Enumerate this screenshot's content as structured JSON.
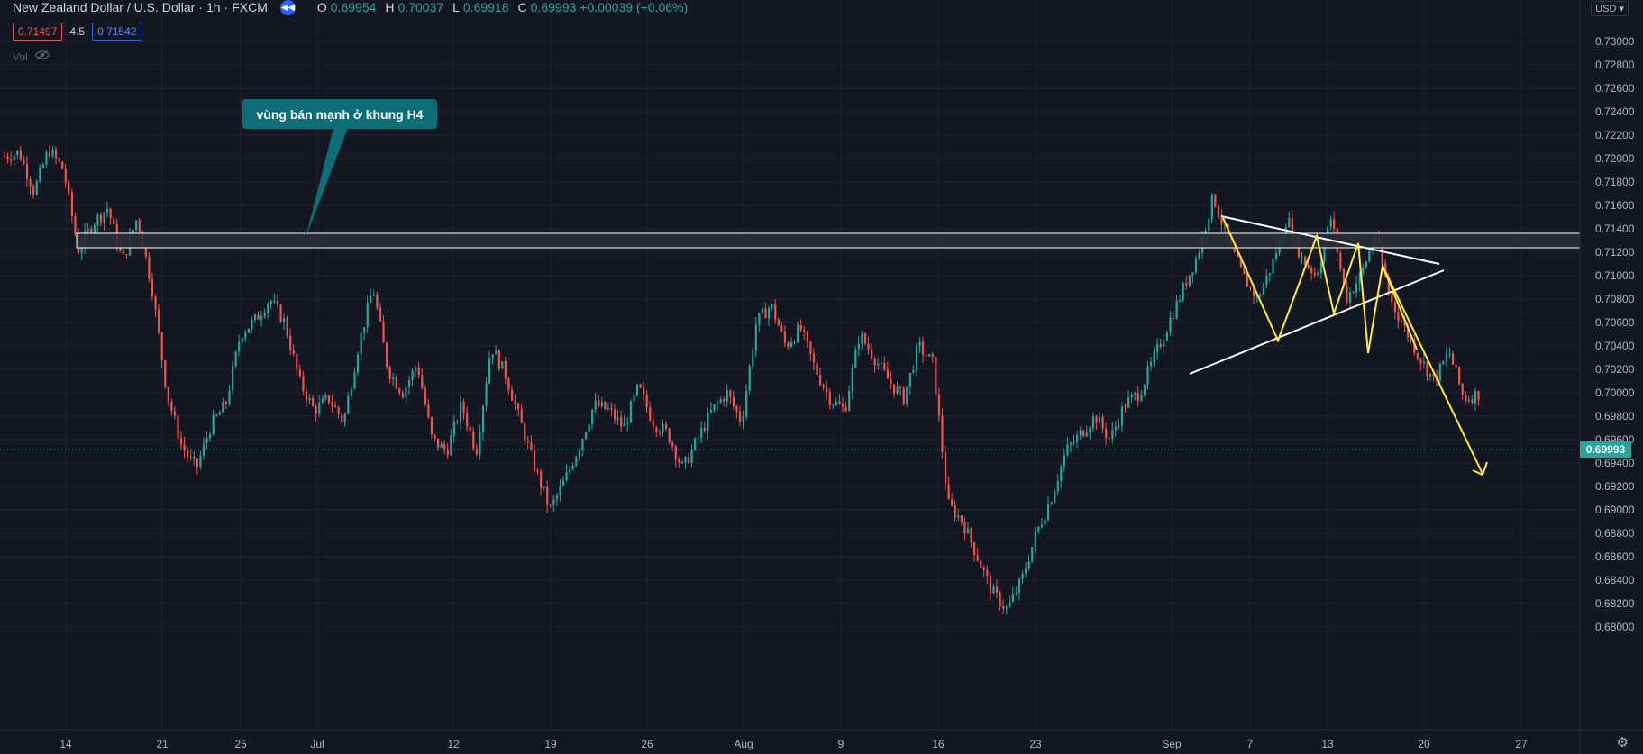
{
  "header": {
    "symbol": "New Zealand Dollar / U.S. Dollar",
    "interval": "1h",
    "exchange": "FXCM",
    "ohlc": {
      "o_label": "O",
      "o": "0.69954",
      "h_label": "H",
      "h": "0.70037",
      "l_label": "L",
      "l": "0.69918",
      "c_label": "C",
      "c": "0.69993",
      "change": "+0.00039 (+0.06%)"
    },
    "sell_price": "0.71497",
    "spread": "4.5",
    "buy_price": "0.71542",
    "indicator": "Vol"
  },
  "currency_button": "USD",
  "annotation": {
    "text": "vùng bán mạnh ở khung H4",
    "color": "#0e6e78"
  },
  "last_price_tag": "0.69993",
  "colors": {
    "background": "#131722",
    "up": "#26a69a",
    "down": "#ef5350",
    "grid": "#1e222d",
    "pattern_yellow": "#ffeb3b",
    "trendline": "#ffffff"
  },
  "chart_data": {
    "type": "candlestick",
    "ylim": [
      0.6795,
      0.7312
    ],
    "y_ticks": [
      "0.73000",
      "0.72800",
      "0.72600",
      "0.72400",
      "0.72200",
      "0.72000",
      "0.71800",
      "0.71600",
      "0.71400",
      "0.71200",
      "0.71000",
      "0.70800",
      "0.70600",
      "0.70400",
      "0.70200",
      "0.70000",
      "0.69800",
      "0.69600",
      "0.69400",
      "0.69200",
      "0.69000",
      "0.68800",
      "0.68600",
      "0.68400",
      "0.68200",
      "0.68000"
    ],
    "x_ticks": [
      "14",
      "21",
      "25",
      "Jul",
      "12",
      "19",
      "26",
      "Aug",
      "9",
      "16",
      "23",
      "Sep",
      "7",
      "13",
      "20",
      "27"
    ],
    "price_path": [
      {
        "x": "Jun 9",
        "y": 0.7202
      },
      {
        "x": "Jun 10",
        "y": 0.7205
      },
      {
        "x": "Jun 11",
        "y": 0.7172
      },
      {
        "x": "Jun 12",
        "y": 0.7208
      },
      {
        "x": "Jun 13",
        "y": 0.719
      },
      {
        "x": "Jun 14",
        "y": 0.7122
      },
      {
        "x": "Jun 15",
        "y": 0.7145
      },
      {
        "x": "Jun 16",
        "y": 0.7158
      },
      {
        "x": "Jun 17",
        "y": 0.7112
      },
      {
        "x": "Jun 18",
        "y": 0.715
      },
      {
        "x": "Jun 19",
        "y": 0.709
      },
      {
        "x": "Jun 20",
        "y": 0.7
      },
      {
        "x": "Jun 21",
        "y": 0.6955
      },
      {
        "x": "Jun 22",
        "y": 0.6935
      },
      {
        "x": "Jun 23",
        "y": 0.6972
      },
      {
        "x": "Jun 24",
        "y": 0.699
      },
      {
        "x": "Jun 25",
        "y": 0.705
      },
      {
        "x": "Jun 26",
        "y": 0.7062
      },
      {
        "x": "Jun 28",
        "y": 0.708
      },
      {
        "x": "Jun 29",
        "y": 0.706
      },
      {
        "x": "Jun 30",
        "y": 0.701
      },
      {
        "x": "Jul 1",
        "y": 0.6985
      },
      {
        "x": "Jul 2",
        "y": 0.6995
      },
      {
        "x": "Jul 3",
        "y": 0.6975
      },
      {
        "x": "Jul 5",
        "y": 0.704
      },
      {
        "x": "Jul 6",
        "y": 0.709
      },
      {
        "x": "Jul 7",
        "y": 0.702
      },
      {
        "x": "Jul 8",
        "y": 0.7
      },
      {
        "x": "Jul 9",
        "y": 0.7025
      },
      {
        "x": "Jul 10",
        "y": 0.696
      },
      {
        "x": "Jul 12",
        "y": 0.695
      },
      {
        "x": "Jul 13",
        "y": 0.699
      },
      {
        "x": "Jul 14",
        "y": 0.695
      },
      {
        "x": "Jul 15",
        "y": 0.704
      },
      {
        "x": "Jul 16",
        "y": 0.7015
      },
      {
        "x": "Jul 18",
        "y": 0.6975
      },
      {
        "x": "Jul 19",
        "y": 0.6935
      },
      {
        "x": "Jul 20",
        "y": 0.69
      },
      {
        "x": "Jul 21",
        "y": 0.6925
      },
      {
        "x": "Jul 22",
        "y": 0.6955
      },
      {
        "x": "Jul 23",
        "y": 0.699
      },
      {
        "x": "Jul 25",
        "y": 0.6985
      },
      {
        "x": "Jul 26",
        "y": 0.697
      },
      {
        "x": "Jul 27",
        "y": 0.7005
      },
      {
        "x": "Jul 28",
        "y": 0.6975
      },
      {
        "x": "Jul 29",
        "y": 0.6965
      },
      {
        "x": "Jul 30",
        "y": 0.6935
      },
      {
        "x": "Aug 1",
        "y": 0.696
      },
      {
        "x": "Aug 2",
        "y": 0.6985
      },
      {
        "x": "Aug 3",
        "y": 0.7
      },
      {
        "x": "Aug 4",
        "y": 0.6975
      },
      {
        "x": "Aug 5",
        "y": 0.706
      },
      {
        "x": "Aug 6",
        "y": 0.7075
      },
      {
        "x": "Aug 7",
        "y": 0.704
      },
      {
        "x": "Aug 9",
        "y": 0.7055
      },
      {
        "x": "Aug 10",
        "y": 0.702
      },
      {
        "x": "Aug 11",
        "y": 0.6995
      },
      {
        "x": "Aug 12",
        "y": 0.6985
      },
      {
        "x": "Aug 13",
        "y": 0.705
      },
      {
        "x": "Aug 14",
        "y": 0.703
      },
      {
        "x": "Aug 15",
        "y": 0.701
      },
      {
        "x": "Aug 16",
        "y": 0.6995
      },
      {
        "x": "Aug 17",
        "y": 0.704
      },
      {
        "x": "Aug 18",
        "y": 0.7025
      },
      {
        "x": "Aug 19",
        "y": 0.6905
      },
      {
        "x": "Aug 20",
        "y": 0.689
      },
      {
        "x": "Aug 21",
        "y": 0.686
      },
      {
        "x": "Aug 22",
        "y": 0.683
      },
      {
        "x": "Aug 23",
        "y": 0.6815
      },
      {
        "x": "Aug 24",
        "y": 0.684
      },
      {
        "x": "Aug 25",
        "y": 0.688
      },
      {
        "x": "Aug 26",
        "y": 0.691
      },
      {
        "x": "Aug 27",
        "y": 0.695
      },
      {
        "x": "Aug 28",
        "y": 0.6965
      },
      {
        "x": "Aug 29",
        "y": 0.698
      },
      {
        "x": "Aug 30",
        "y": 0.696
      },
      {
        "x": "Aug 31",
        "y": 0.699
      },
      {
        "x": "Sep 1",
        "y": 0.7
      },
      {
        "x": "Sep 2",
        "y": 0.703
      },
      {
        "x": "Sep 3",
        "y": 0.706
      },
      {
        "x": "Sep 4",
        "y": 0.709
      },
      {
        "x": "Sep 5",
        "y": 0.712
      },
      {
        "x": "Sep 6",
        "y": 0.7168
      },
      {
        "x": "Sep 7",
        "y": 0.713
      },
      {
        "x": "Sep 8",
        "y": 0.71
      },
      {
        "x": "Sep 9",
        "y": 0.708
      },
      {
        "x": "Sep 10",
        "y": 0.711
      },
      {
        "x": "Sep 11",
        "y": 0.715
      },
      {
        "x": "Sep 12",
        "y": 0.7115
      },
      {
        "x": "Sep 13",
        "y": 0.71
      },
      {
        "x": "Sep 14",
        "y": 0.715
      },
      {
        "x": "Sep 15",
        "y": 0.708
      },
      {
        "x": "Sep 16",
        "y": 0.71
      },
      {
        "x": "Sep 17",
        "y": 0.7135
      },
      {
        "x": "Sep 18",
        "y": 0.708
      },
      {
        "x": "Sep 19",
        "y": 0.7055
      },
      {
        "x": "Sep 20",
        "y": 0.703
      },
      {
        "x": "Sep 21",
        "y": 0.701
      },
      {
        "x": "Sep 22",
        "y": 0.7035
      },
      {
        "x": "Sep 23",
        "y": 0.6995
      },
      {
        "x": "Sep 24",
        "y": 0.6999
      }
    ],
    "resistance_zone": [
      0.71485,
      0.7158
    ],
    "current_price": 0.69993
  }
}
